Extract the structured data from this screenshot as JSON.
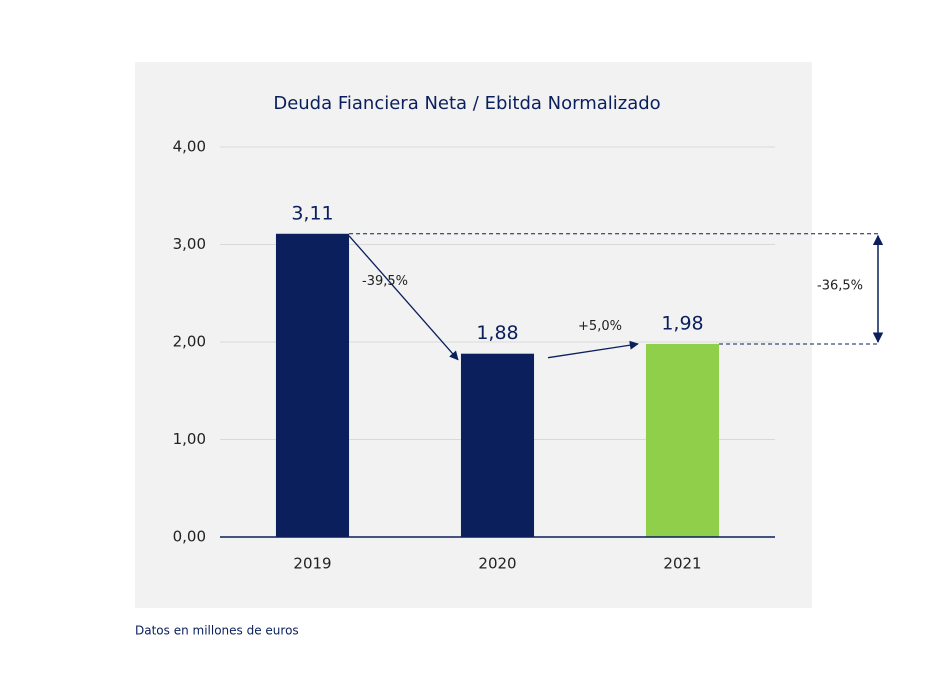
{
  "chart_data": {
    "type": "bar",
    "title": "Deuda Fianciera Neta / Ebitda Normalizado",
    "categories": [
      "2019",
      "2020",
      "2021"
    ],
    "values": [
      3.11,
      1.88,
      1.98
    ],
    "value_labels": [
      "3,11",
      "1,88",
      "1,98"
    ],
    "colors": [
      "#0a1f5c",
      "#0a1f5c",
      "#8fcf4a"
    ],
    "ylim": [
      0,
      4
    ],
    "yticks": [
      {
        "value": 0,
        "label": "0,00"
      },
      {
        "value": 1,
        "label": "1,00"
      },
      {
        "value": 2,
        "label": "2,00"
      },
      {
        "value": 3,
        "label": "3,00"
      },
      {
        "value": 4,
        "label": "4,00"
      }
    ],
    "grid": true,
    "annotations": [
      "-39,5%",
      "+5,0%",
      "-36,5%"
    ],
    "footnote": "Datos en millones de euros"
  }
}
